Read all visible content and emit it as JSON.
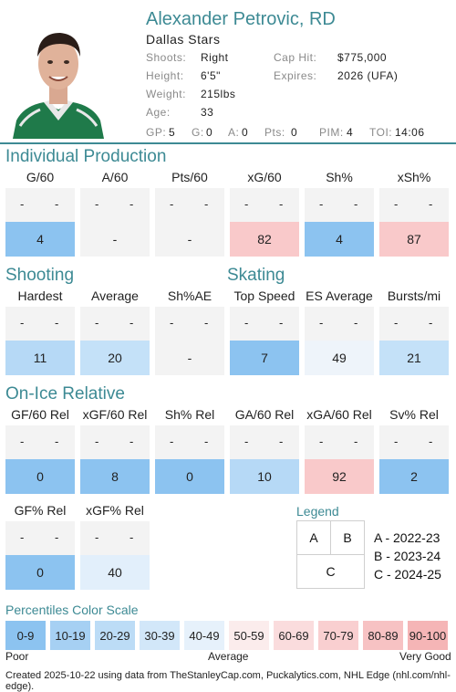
{
  "player": {
    "name": "Alexander Petrovic, RD",
    "team": "Dallas Stars",
    "shoots_label": "Shoots:",
    "shoots": "Right",
    "height_label": "Height:",
    "height": "6'5\"",
    "weight_label": "Weight:",
    "weight": "215lbs",
    "age_label": "Age:",
    "age": "33",
    "cap_label": "Cap Hit:",
    "cap": "$775,000",
    "expires_label": "Expires:",
    "expires": "2026 (UFA)",
    "stats": [
      {
        "label": "GP:",
        "value": "5"
      },
      {
        "label": "G:",
        "value": "0"
      },
      {
        "label": "A:",
        "value": "0"
      },
      {
        "label": "Pts:",
        "value": "0"
      },
      {
        "label": "PIM:",
        "value": "4"
      },
      {
        "label": "TOI:",
        "value": "14:06"
      }
    ]
  },
  "sections": {
    "individual": "Individual Production",
    "shooting": "Shooting",
    "skating": "Skating",
    "onice": "On-Ice Relative"
  },
  "individual": [
    {
      "name": "G/60",
      "pct": "4",
      "color": "#8cc3f0"
    },
    {
      "name": "A/60",
      "pct": "-",
      "color": "#f3f3f3"
    },
    {
      "name": "Pts/60",
      "pct": "-",
      "color": "#f3f3f3"
    },
    {
      "name": "xG/60",
      "pct": "82",
      "color": "#f9c9ca"
    },
    {
      "name": "Sh%",
      "pct": "4",
      "color": "#8cc3f0"
    },
    {
      "name": "xSh%",
      "pct": "87",
      "color": "#f9c9ca"
    }
  ],
  "shooting_skating": [
    {
      "name": "Hardest",
      "pct": "11",
      "color": "#b6d9f6"
    },
    {
      "name": "Average",
      "pct": "20",
      "color": "#c4e1f8"
    },
    {
      "name": "Sh%AE",
      "pct": "-",
      "color": "#f3f3f3"
    },
    {
      "name": "Top Speed",
      "pct": "7",
      "color": "#8cc3f0"
    },
    {
      "name": "ES Average",
      "pct": "49",
      "color": "#eef4fa"
    },
    {
      "name": "Bursts/mi",
      "pct": "21",
      "color": "#c4e1f8"
    }
  ],
  "onice": [
    {
      "name": "GF/60 Rel",
      "pct": "0",
      "color": "#8cc3f0"
    },
    {
      "name": "xGF/60 Rel",
      "pct": "8",
      "color": "#8cc3f0"
    },
    {
      "name": "Sh% Rel",
      "pct": "0",
      "color": "#8cc3f0"
    },
    {
      "name": "GA/60 Rel",
      "pct": "10",
      "color": "#b6d9f6"
    },
    {
      "name": "xGA/60 Rel",
      "pct": "92",
      "color": "#f9c9ca"
    },
    {
      "name": "Sv% Rel",
      "pct": "2",
      "color": "#8cc3f0"
    }
  ],
  "onice2": [
    {
      "name": "GF% Rel",
      "pct": "0",
      "color": "#8cc3f0"
    },
    {
      "name": "xGF% Rel",
      "pct": "40",
      "color": "#e2effb"
    }
  ],
  "dash": "-",
  "legend": {
    "title": "Legend",
    "a": "A",
    "b": "B",
    "c": "C",
    "a_label": "A - 2022-23",
    "b_label": "B - 2023-24",
    "c_label": "C - 2024-25"
  },
  "scale": {
    "title": "Percentiles Color Scale",
    "cells": [
      {
        "label": "0-9",
        "color": "#8cc3f0"
      },
      {
        "label": "10-19",
        "color": "#a6d0f3"
      },
      {
        "label": "20-29",
        "color": "#bcdcf6"
      },
      {
        "label": "30-39",
        "color": "#d2e7f9"
      },
      {
        "label": "40-49",
        "color": "#e6f1fb"
      },
      {
        "label": "50-59",
        "color": "#fbecec"
      },
      {
        "label": "60-69",
        "color": "#fadcdd"
      },
      {
        "label": "70-79",
        "color": "#f9cfd0"
      },
      {
        "label": "80-89",
        "color": "#f7c2c3"
      },
      {
        "label": "90-100",
        "color": "#f5b5b6"
      }
    ],
    "poor": "Poor",
    "average": "Average",
    "good": "Very Good"
  },
  "footer": "Created 2025-10-22 using data from TheStanleyCap.com, Puckalytics.com, NHL Edge (nhl.com/nhl-edge)."
}
